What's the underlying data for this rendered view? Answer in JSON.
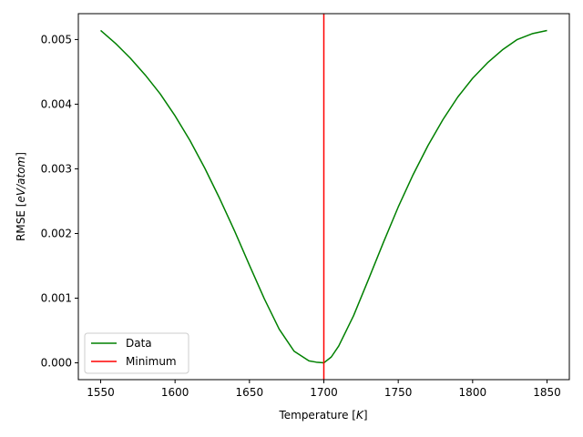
{
  "chart_data": {
    "type": "line",
    "title": "",
    "xlabel": "Temperature",
    "xlabel_unit": "K",
    "ylabel": "RMSE",
    "ylabel_unit": "eV/atom",
    "xlim": [
      1535,
      1865
    ],
    "ylim": [
      -0.00026,
      0.0054
    ],
    "xticks": [
      1550,
      1600,
      1650,
      1700,
      1750,
      1800,
      1850
    ],
    "xtick_labels": [
      "1550",
      "1600",
      "1650",
      "1700",
      "1750",
      "1800",
      "1850"
    ],
    "yticks": [
      0.0,
      0.001,
      0.002,
      0.003,
      0.004,
      0.005
    ],
    "ytick_labels": [
      "0.000",
      "0.001",
      "0.002",
      "0.003",
      "0.004",
      "0.005"
    ],
    "grid": false,
    "legend_position": "lower-left",
    "series": [
      {
        "name": "Data",
        "color": "#008000",
        "x": [
          1550,
          1560,
          1570,
          1580,
          1590,
          1600,
          1610,
          1620,
          1630,
          1640,
          1650,
          1660,
          1670,
          1680,
          1690,
          1695,
          1700,
          1705,
          1710,
          1720,
          1730,
          1740,
          1750,
          1760,
          1770,
          1780,
          1790,
          1800,
          1810,
          1820,
          1830,
          1840,
          1850
        ],
        "y": [
          0.00514,
          0.00494,
          0.00471,
          0.00445,
          0.00416,
          0.00382,
          0.00344,
          0.00301,
          0.00254,
          0.00204,
          0.00151,
          0.00099,
          0.00052,
          0.00018,
          3e-05,
          1e-05,
          0.0,
          9e-05,
          0.00026,
          0.00073,
          0.00129,
          0.00186,
          0.00241,
          0.00291,
          0.00336,
          0.00376,
          0.00411,
          0.0044,
          0.00464,
          0.00484,
          0.005,
          0.00509,
          0.00514
        ]
      },
      {
        "name": "Minimum",
        "color": "#ff0000",
        "type": "vline",
        "x": 1700
      }
    ]
  }
}
